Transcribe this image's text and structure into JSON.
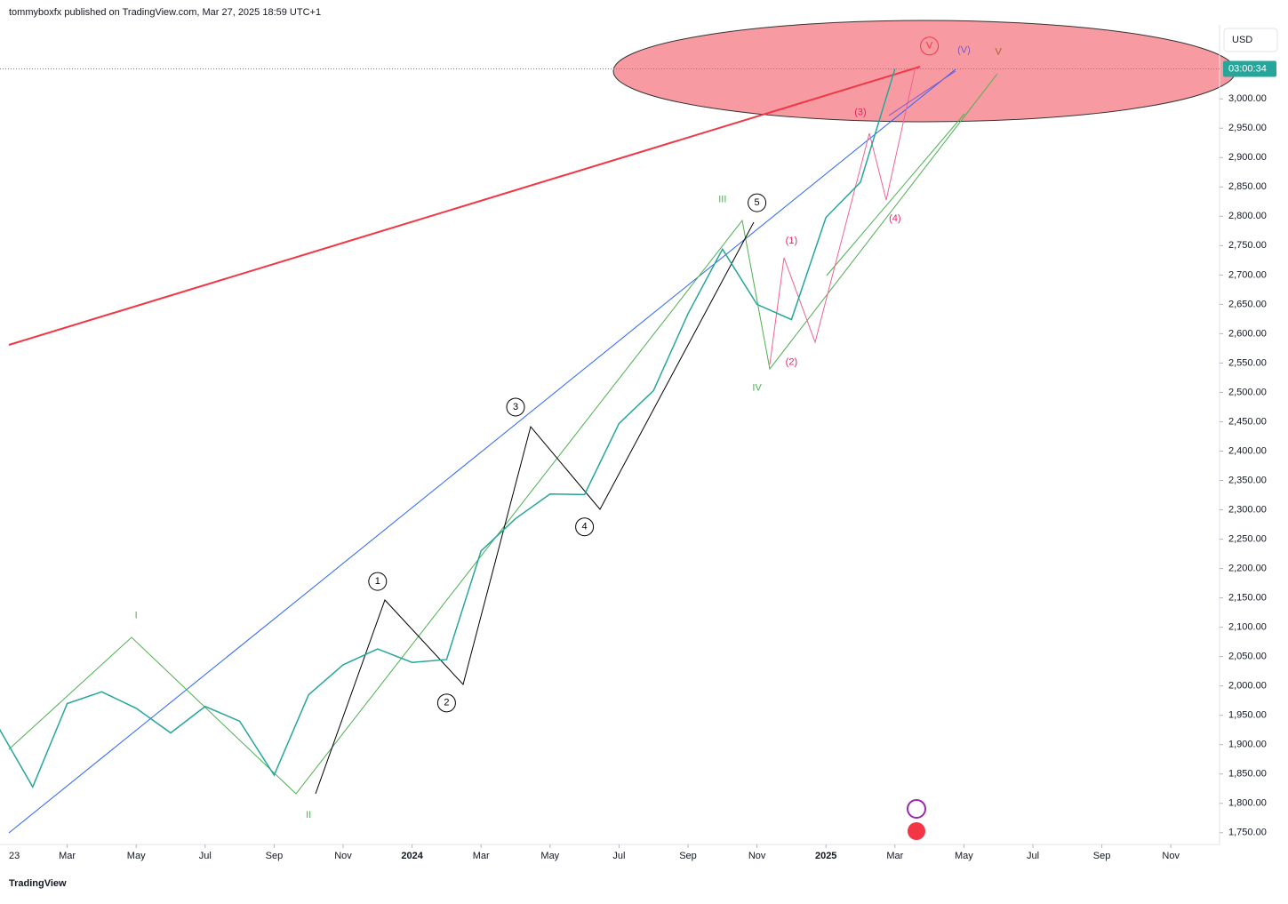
{
  "header": {
    "attribution": "tommyboxfx published on TradingView.com, Mar 27, 2025 18:59 UTC+1",
    "brand": "TradingView"
  },
  "chart_data": {
    "type": "line",
    "currency": "USD",
    "countdown": "03:00:34",
    "last_price": 3051,
    "color": "#26a69a",
    "x": [
      "2023-01",
      "2023-02",
      "2023-03",
      "2023-04",
      "2023-05",
      "2023-06",
      "2023-07",
      "2023-08",
      "2023-09",
      "2023-10",
      "2023-11",
      "2023-12",
      "2024-01",
      "2024-02",
      "2024-03",
      "2024-04",
      "2024-05",
      "2024-06",
      "2024-07",
      "2024-08",
      "2024-09",
      "2024-10",
      "2024-11",
      "2024-12",
      "2025-01",
      "2025-02",
      "2025-03"
    ],
    "values": [
      1930,
      1828,
      1970,
      1990,
      1962,
      1920,
      1965,
      1940,
      1848,
      1985,
      2036,
      2063,
      2040,
      2045,
      2230,
      2285,
      2327,
      2326,
      2447,
      2503,
      2634,
      2744,
      2650,
      2624,
      2798,
      2858,
      3051
    ],
    "xlim": [
      "2023-01",
      "2025-12"
    ],
    "xticks": [
      {
        "value": "2023-01",
        "label": "23"
      },
      {
        "value": "2023-03",
        "label": "Mar"
      },
      {
        "value": "2023-05",
        "label": "May"
      },
      {
        "value": "2023-07",
        "label": "Jul"
      },
      {
        "value": "2023-09",
        "label": "Sep"
      },
      {
        "value": "2023-11",
        "label": "Nov"
      },
      {
        "value": "2024-01",
        "label": "2024"
      },
      {
        "value": "2024-03",
        "label": "Mar"
      },
      {
        "value": "2024-05",
        "label": "May"
      },
      {
        "value": "2024-07",
        "label": "Jul"
      },
      {
        "value": "2024-09",
        "label": "Sep"
      },
      {
        "value": "2024-11",
        "label": "Nov"
      },
      {
        "value": "2025-01",
        "label": "2025"
      },
      {
        "value": "2025-03",
        "label": "Mar"
      },
      {
        "value": "2025-05",
        "label": "May"
      },
      {
        "value": "2025-07",
        "label": "Jul"
      },
      {
        "value": "2025-09",
        "label": "Sep"
      },
      {
        "value": "2025-11",
        "label": "Nov"
      }
    ],
    "ylim": [
      1730,
      3126
    ],
    "yticks": [
      {
        "value": 1750,
        "label": "1,750.00"
      },
      {
        "value": 1800,
        "label": "1,800.00"
      },
      {
        "value": 1850,
        "label": "1,850.00"
      },
      {
        "value": 1900,
        "label": "1,900.00"
      },
      {
        "value": 1950,
        "label": "1,950.00"
      },
      {
        "value": 2000,
        "label": "2,000.00"
      },
      {
        "value": 2050,
        "label": "2,050.00"
      },
      {
        "value": 2100,
        "label": "2,100.00"
      },
      {
        "value": 2150,
        "label": "2,150.00"
      },
      {
        "value": 2200,
        "label": "2,200.00"
      },
      {
        "value": 2250,
        "label": "2,250.00"
      },
      {
        "value": 2300,
        "label": "2,300.00"
      },
      {
        "value": 2350,
        "label": "2,350.00"
      },
      {
        "value": 2400,
        "label": "2,400.00"
      },
      {
        "value": 2450,
        "label": "2,450.00"
      },
      {
        "value": 2500,
        "label": "2,500.00"
      },
      {
        "value": 2550,
        "label": "2,550.00"
      },
      {
        "value": 2600,
        "label": "2,600.00"
      },
      {
        "value": 2650,
        "label": "2,650.00"
      },
      {
        "value": 2700,
        "label": "2,700.00"
      },
      {
        "value": 2750,
        "label": "2,750.00"
      },
      {
        "value": 2800,
        "label": "2,800.00"
      },
      {
        "value": 2850,
        "label": "2,850.00"
      },
      {
        "value": 2900,
        "label": "2,900.00"
      },
      {
        "value": 2950,
        "label": "2,950.00"
      },
      {
        "value": 3000,
        "label": "3,000.00"
      }
    ],
    "annotations": [
      {
        "text": "I",
        "x": "2023-05",
        "y": 2120,
        "color": "#4caf50",
        "circled": false
      },
      {
        "text": "II",
        "x": "2023-10",
        "y": 1780,
        "color": "#4caf50",
        "circled": false
      },
      {
        "text": "1",
        "x": "2023-12",
        "y": 2178,
        "color": "#000000",
        "circled": true
      },
      {
        "text": "2",
        "x": "2024-02",
        "y": 1971,
        "color": "#000000",
        "circled": true
      },
      {
        "text": "3",
        "x": "2024-04",
        "y": 2475,
        "color": "#000000",
        "circled": true
      },
      {
        "text": "4",
        "x": "2024-06",
        "y": 2271,
        "color": "#000000",
        "circled": true
      },
      {
        "text": "III",
        "x": "2024-10",
        "y": 2828,
        "color": "#4caf50",
        "circled": false
      },
      {
        "text": "5",
        "x": "2024-11",
        "y": 2823,
        "color": "#000000",
        "circled": true
      },
      {
        "text": "IV",
        "x": "2024-11",
        "y": 2507,
        "color": "#4caf50",
        "circled": false
      },
      {
        "text": "(1)",
        "x": "2024-12",
        "y": 2758,
        "color": "#e91e63",
        "circled": false
      },
      {
        "text": "(2)",
        "x": "2024-12",
        "y": 2551,
        "color": "#e91e63",
        "circled": false
      },
      {
        "text": "(3)",
        "x": "2025-02",
        "y": 2977,
        "color": "#e91e63",
        "circled": false
      },
      {
        "text": "(4)",
        "x": "2025-03",
        "y": 2796,
        "color": "#e91e63",
        "circled": false
      },
      {
        "text": "V",
        "x": "2025-04",
        "y": 3090,
        "color": "#f23645",
        "circled": true
      },
      {
        "text": "(V)",
        "x": "2025-05",
        "y": 3083,
        "color": "#7e57c2",
        "circled": false
      },
      {
        "text": "V",
        "x": "2025-06",
        "y": 3080,
        "color": "#a1662f",
        "circled": false
      }
    ]
  }
}
